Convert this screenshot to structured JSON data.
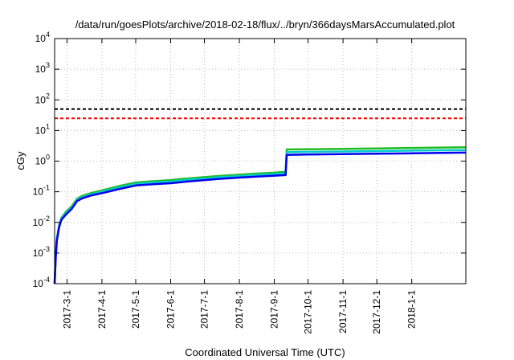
{
  "chart_data": {
    "type": "line",
    "title": "/data/run/goesPlots/archive/2018-02-18/flux/../bryn/366daysMarsAccumulated.plot",
    "xlabel": "Coordinated Universal Time (UTC)",
    "ylabel": "cGy",
    "x_scale": "time",
    "y_scale": "log",
    "xlim": [
      "2017-02-18",
      "2018-02-18"
    ],
    "ylim": [
      0.0001,
      10000
    ],
    "grid": true,
    "x_ticks": [
      "2017-3-1",
      "2017-4-1",
      "2017-5-1",
      "2017-6-1",
      "2017-7-1",
      "2017-8-1",
      "2017-9-1",
      "2017-10-1",
      "2017-11-1",
      "2017-12-1",
      "2018-1-1"
    ],
    "y_ticks": [
      {
        "value": 0.0001,
        "base": "10",
        "exp": "-4"
      },
      {
        "value": 0.001,
        "base": "10",
        "exp": "-3"
      },
      {
        "value": 0.01,
        "base": "10",
        "exp": "-2"
      },
      {
        "value": 0.1,
        "base": "10",
        "exp": "-1"
      },
      {
        "value": 1,
        "base": "10",
        "exp": "0"
      },
      {
        "value": 10,
        "base": "10",
        "exp": "1"
      },
      {
        "value": 100,
        "base": "10",
        "exp": "2"
      },
      {
        "value": 1000,
        "base": "10",
        "exp": "3"
      },
      {
        "value": 10000,
        "base": "10",
        "exp": "4"
      }
    ],
    "reference_lines": [
      {
        "value": 50,
        "color": "#000000",
        "style": "dashed"
      },
      {
        "value": 25,
        "color": "#ff0000",
        "style": "dashed"
      }
    ],
    "series": [
      {
        "color": "#22bb22",
        "x": [
          "2017-02-18",
          "2017-02-19",
          "2017-02-20",
          "2017-02-22",
          "2017-02-24",
          "2017-02-28",
          "2017-03-05",
          "2017-03-10",
          "2017-03-15",
          "2017-03-22",
          "2017-04-01",
          "2017-04-15",
          "2017-05-01",
          "2017-05-15",
          "2017-06-01",
          "2017-06-10",
          "2017-06-15",
          "2017-07-01",
          "2017-07-15",
          "2017-08-01",
          "2017-08-15",
          "2017-09-01",
          "2017-09-11",
          "2017-09-12",
          "2017-10-01",
          "2017-11-01",
          "2017-12-01",
          "2018-01-01",
          "2018-02-18"
        ],
        "y": [
          0.0001,
          0.0009,
          0.003,
          0.008,
          0.014,
          0.022,
          0.033,
          0.06,
          0.075,
          0.09,
          0.11,
          0.15,
          0.2,
          0.22,
          0.24,
          0.26,
          0.27,
          0.3,
          0.33,
          0.36,
          0.39,
          0.42,
          0.45,
          2.4,
          2.45,
          2.5,
          2.6,
          2.7,
          2.85
        ]
      },
      {
        "color": "#00cccc",
        "x": [
          "2017-02-18",
          "2017-02-19",
          "2017-02-20",
          "2017-02-22",
          "2017-02-24",
          "2017-02-28",
          "2017-03-05",
          "2017-03-10",
          "2017-03-15",
          "2017-03-22",
          "2017-04-01",
          "2017-04-15",
          "2017-05-01",
          "2017-05-15",
          "2017-06-01",
          "2017-06-10",
          "2017-06-15",
          "2017-07-01",
          "2017-07-15",
          "2017-08-01",
          "2017-08-15",
          "2017-09-01",
          "2017-09-11",
          "2017-09-12",
          "2017-10-01",
          "2017-11-01",
          "2017-12-01",
          "2018-01-01",
          "2018-02-18"
        ],
        "y": [
          0.0001,
          0.0008,
          0.0028,
          0.0075,
          0.013,
          0.02,
          0.03,
          0.055,
          0.068,
          0.082,
          0.1,
          0.135,
          0.18,
          0.2,
          0.215,
          0.235,
          0.245,
          0.27,
          0.3,
          0.325,
          0.35,
          0.38,
          0.4,
          1.95,
          2.0,
          2.07,
          2.13,
          2.2,
          2.3
        ]
      },
      {
        "color": "#0000ee",
        "x": [
          "2017-02-18",
          "2017-02-19",
          "2017-02-20",
          "2017-02-22",
          "2017-02-24",
          "2017-02-28",
          "2017-03-05",
          "2017-03-10",
          "2017-03-15",
          "2017-03-22",
          "2017-04-01",
          "2017-04-15",
          "2017-05-01",
          "2017-05-15",
          "2017-06-01",
          "2017-06-10",
          "2017-06-15",
          "2017-07-01",
          "2017-07-15",
          "2017-08-01",
          "2017-08-15",
          "2017-09-01",
          "2017-09-11",
          "2017-09-12",
          "2017-10-01",
          "2017-11-01",
          "2017-12-01",
          "2018-01-01",
          "2018-02-18"
        ],
        "y": [
          0.0001,
          0.0007,
          0.0025,
          0.007,
          0.012,
          0.018,
          0.027,
          0.05,
          0.062,
          0.075,
          0.09,
          0.12,
          0.16,
          0.175,
          0.19,
          0.205,
          0.215,
          0.24,
          0.265,
          0.29,
          0.31,
          0.335,
          0.35,
          1.6,
          1.65,
          1.7,
          1.75,
          1.8,
          1.9
        ]
      }
    ]
  }
}
